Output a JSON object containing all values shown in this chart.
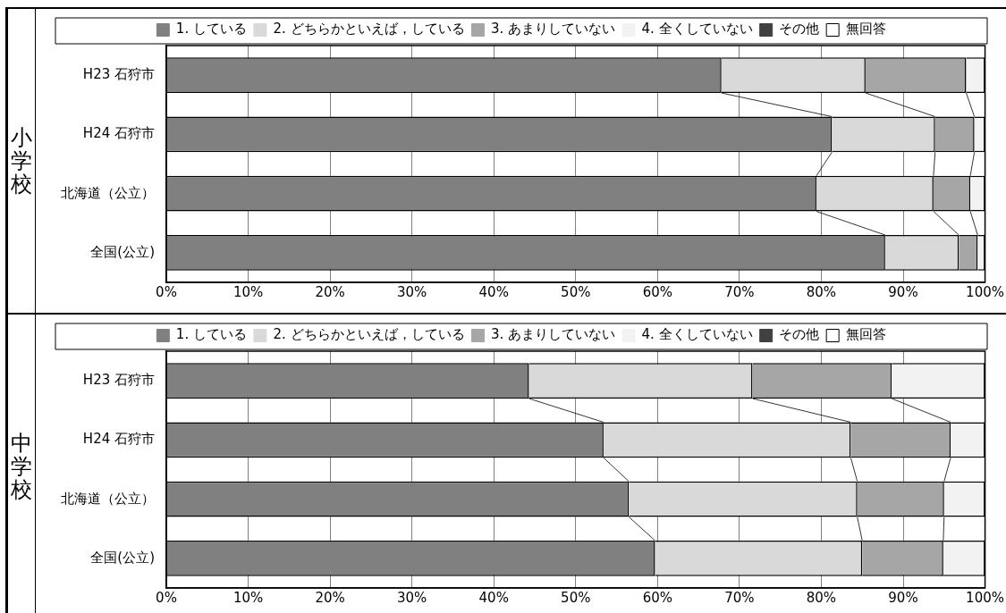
{
  "chart_data": [
    {
      "type": "bar",
      "title": "小学校",
      "orientation": "horizontal",
      "stacked": true,
      "categories": [
        "H23 石狩市",
        "H24 石狩市",
        "北海道（公立）",
        "全国(公立)"
      ],
      "series": [
        {
          "name": "1. している",
          "color": "#808080",
          "values": [
            67.8,
            81.3,
            79.4,
            87.8
          ]
        },
        {
          "name": "2. どちらかといえば，している",
          "color": "#d9d9d9",
          "values": [
            17.6,
            12.6,
            14.3,
            9.0
          ]
        },
        {
          "name": "3. あまりしていない",
          "color": "#a6a6a6",
          "values": [
            12.3,
            4.8,
            4.5,
            2.3
          ]
        },
        {
          "name": "4. 全くしていない",
          "color": "#f2f2f2",
          "values": [
            2.3,
            1.3,
            1.8,
            0.9
          ]
        },
        {
          "name": "その他",
          "color": "#404040",
          "values": [
            0,
            0,
            0,
            0
          ]
        },
        {
          "name": "無回答",
          "color": "#ffffff",
          "values": [
            0,
            0,
            0,
            0
          ]
        }
      ],
      "xlim": [
        0,
        100
      ],
      "xticks": [
        {
          "value": 0,
          "label": "0%"
        },
        {
          "value": 10,
          "label": "10%"
        },
        {
          "value": 20,
          "label": "20%"
        },
        {
          "value": 30,
          "label": "30%"
        },
        {
          "value": 40,
          "label": "40%"
        },
        {
          "value": 50,
          "label": "50%"
        },
        {
          "value": 60,
          "label": "60%"
        },
        {
          "value": 70,
          "label": "70%"
        },
        {
          "value": 80,
          "label": "80%"
        },
        {
          "value": 90,
          "label": "90%"
        },
        {
          "value": 100,
          "label": "100%"
        }
      ],
      "grid": "x",
      "legend": "top"
    },
    {
      "type": "bar",
      "title": "中学校",
      "orientation": "horizontal",
      "stacked": true,
      "categories": [
        "H23 石狩市",
        "H24 石狩市",
        "北海道（公立）",
        "全国(公立)"
      ],
      "series": [
        {
          "name": "1. している",
          "color": "#808080",
          "values": [
            44.3,
            53.4,
            56.5,
            59.7
          ]
        },
        {
          "name": "2. どちらかといえば，している",
          "color": "#d9d9d9",
          "values": [
            27.3,
            30.2,
            27.9,
            25.3
          ]
        },
        {
          "name": "3. あまりしていない",
          "color": "#a6a6a6",
          "values": [
            17.0,
            12.2,
            10.6,
            9.9
          ]
        },
        {
          "name": "4. 全くしていない",
          "color": "#f2f2f2",
          "values": [
            11.4,
            4.2,
            5.0,
            5.1
          ]
        },
        {
          "name": "その他",
          "color": "#404040",
          "values": [
            0,
            0,
            0,
            0
          ]
        },
        {
          "name": "無回答",
          "color": "#ffffff",
          "values": [
            0,
            0,
            0,
            0
          ]
        }
      ],
      "xlim": [
        0,
        100
      ],
      "xticks": [
        {
          "value": 0,
          "label": "0%"
        },
        {
          "value": 10,
          "label": "10%"
        },
        {
          "value": 20,
          "label": "20%"
        },
        {
          "value": 30,
          "label": "30%"
        },
        {
          "value": 40,
          "label": "40%"
        },
        {
          "value": 50,
          "label": "50%"
        },
        {
          "value": 60,
          "label": "60%"
        },
        {
          "value": 70,
          "label": "70%"
        },
        {
          "value": 80,
          "label": "80%"
        },
        {
          "value": 90,
          "label": "90%"
        },
        {
          "value": 100,
          "label": "100%"
        }
      ],
      "grid": "x",
      "legend": "top"
    }
  ]
}
